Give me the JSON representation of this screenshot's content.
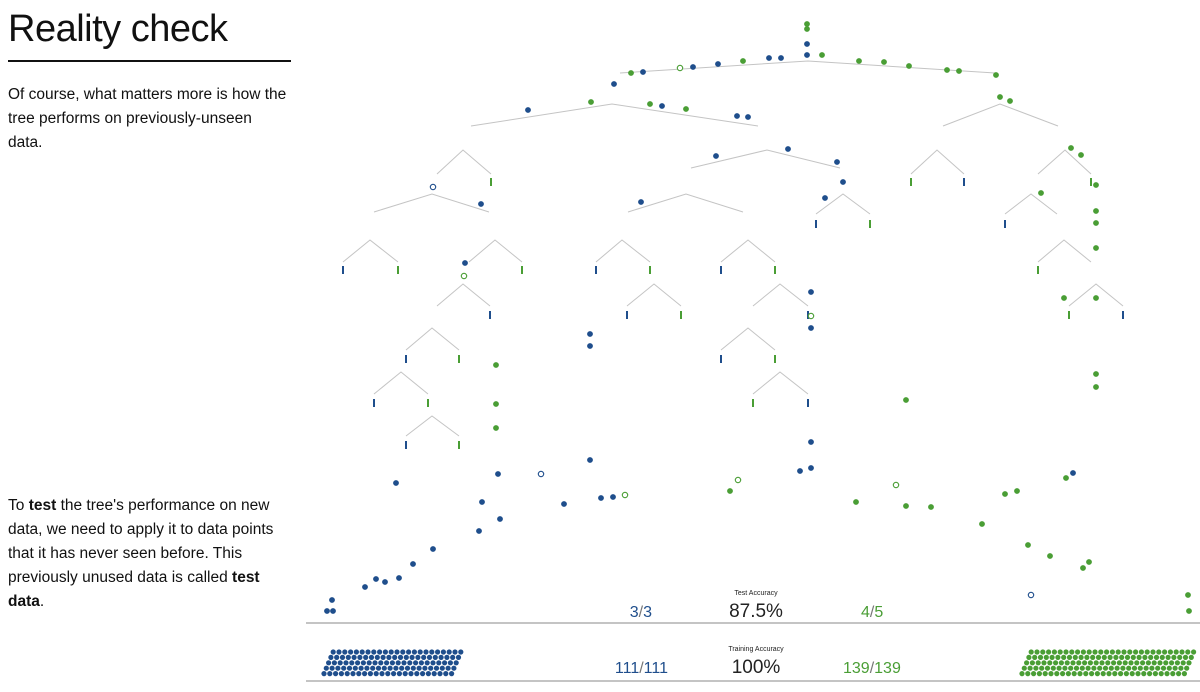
{
  "title": "Reality check",
  "para1": "Of course, what matters more is how the tree performs on previously-unseen data.",
  "para2": {
    "p1": "To ",
    "b1": "test",
    "p2": " the tree's performance on new data, we need to apply it to data points that it has never seen before. This previously unused data is called ",
    "b2": "test data",
    "p3": "."
  },
  "colors": {
    "blue": "#1f4e8c",
    "green": "#4a9e35",
    "line": "#c4c4c4",
    "axis": "#8a8a8a"
  },
  "test": {
    "label": "Test Accuracy",
    "accuracy": "87.5%",
    "blue_correct": "3",
    "blue_total": "3",
    "green_correct": "4",
    "green_total": "5"
  },
  "training": {
    "label": "Training Accuracy",
    "accuracy": "100%",
    "blue_correct": "111",
    "blue_total": "111",
    "green_correct": "139",
    "green_total": "139"
  }
}
